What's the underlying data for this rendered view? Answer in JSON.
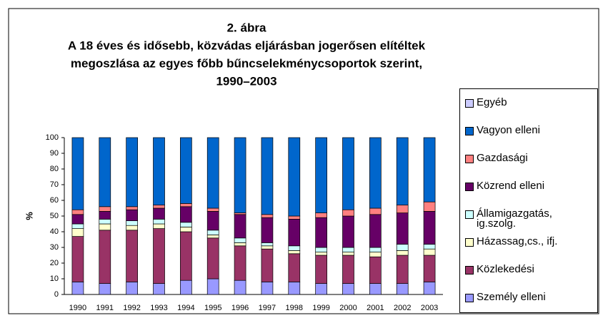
{
  "chart_data": {
    "type": "stacked_bar",
    "title": "2. ábra",
    "subtitle": [
      "A 18 éves és idősebb, közvádas eljárásban jogerősen elítéltek",
      "megoszlása az egyes főbb bűncselekménycsoportok szerint,",
      "1990–2003"
    ],
    "y_label": "%",
    "categories": [
      "1990",
      "1991",
      "1992",
      "1993",
      "1994",
      "1995",
      "1996",
      "1997",
      "1998",
      "1999",
      "2000",
      "2001",
      "2002",
      "2003"
    ],
    "ylim": [
      0,
      100
    ],
    "yticks": [
      0,
      10,
      20,
      30,
      40,
      50,
      60,
      70,
      80,
      90,
      100
    ],
    "legend": "right",
    "series": [
      {
        "name": "Személy elleni",
        "color": "#9999ff",
        "values": [
          8,
          7,
          8,
          7,
          9,
          10,
          9,
          8,
          8,
          7,
          7,
          7,
          7,
          8
        ]
      },
      {
        "name": "Közlekedési",
        "color": "#993366",
        "values": [
          29,
          34,
          33,
          35,
          31,
          26,
          22,
          21,
          18,
          18,
          18,
          17,
          18,
          17
        ]
      },
      {
        "name": "Házassag,cs., ifj.",
        "color": "#ffffcc",
        "values": [
          5,
          4,
          3,
          3,
          3,
          2,
          2,
          2,
          2,
          2,
          2,
          3,
          3,
          4
        ]
      },
      {
        "name": "Államigazgatás, ig.szolg.",
        "color": "#ccffff",
        "values": [
          3,
          3,
          3,
          3,
          3,
          3,
          3,
          2,
          3,
          3,
          3,
          3,
          4,
          3
        ]
      },
      {
        "name": "Közrend elleni",
        "color": "#660066",
        "values": [
          6,
          5,
          7,
          7,
          10,
          12,
          15,
          16,
          17,
          19,
          20,
          21,
          20,
          21
        ]
      },
      {
        "name": "Gazdasági",
        "color": "#ff8080",
        "values": [
          3,
          3,
          2,
          2,
          2,
          2,
          1,
          2,
          2,
          3,
          4,
          4,
          5,
          6
        ]
      },
      {
        "name": "Vagyon elleni",
        "color": "#0066cc",
        "values": [
          46,
          44,
          44,
          43,
          42,
          45,
          48,
          49,
          50,
          48,
          46,
          45,
          43,
          41
        ]
      },
      {
        "name": "Egyéb",
        "color": "#ccccff",
        "values": [
          0,
          0,
          0,
          0,
          0,
          0,
          0,
          0,
          0,
          0,
          0,
          0,
          0,
          0
        ]
      }
    ]
  }
}
